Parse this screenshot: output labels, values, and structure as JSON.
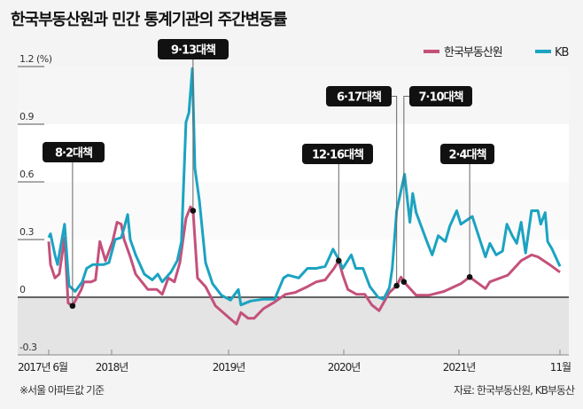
{
  "title": "한국부동산원과 민간 통계기관의 주간변동률",
  "footnote": "※서울 아파트값 기준",
  "source": "자료: 한국부동산원, KB부동산",
  "chart_data": {
    "type": "line",
    "title": "한국부동산원과 민간 통계기관의 주간변동률",
    "ylabel": "(%)",
    "ylim": [
      -0.3,
      1.2
    ],
    "yticks": [
      -0.3,
      0,
      0.3,
      0.6,
      0.9,
      1.2
    ],
    "ytick_labels": [
      "-0.3",
      "0",
      "0.3",
      "0.6",
      "0.9",
      "1.2 (%)"
    ],
    "xticks": [
      {
        "date": "2017-06-01",
        "label": "2017년 6월"
      },
      {
        "date": "2018-01-01",
        "label": "2018년"
      },
      {
        "date": "2019-01-01",
        "label": "2019년"
      },
      {
        "date": "2020-01-01",
        "label": "2020년"
      },
      {
        "date": "2021-01-01",
        "label": "2021년"
      },
      {
        "date": "2021-11-17",
        "label": "11월"
      }
    ],
    "grid": false,
    "legend_position": "top-right",
    "series": [
      {
        "name": "한국부동산원",
        "color": "#c4517b",
        "points": [
          [
            "2017-06-01",
            0.29
          ],
          [
            "2017-06-07",
            0.17
          ],
          [
            "2017-06-22",
            0.1
          ],
          [
            "2017-07-07",
            0.12
          ],
          [
            "2017-07-25",
            0.31
          ],
          [
            "2017-08-06",
            -0.03
          ],
          [
            "2017-08-21",
            -0.045
          ],
          [
            "2017-09-20",
            0.04
          ],
          [
            "2017-09-29",
            0.08
          ],
          [
            "2017-10-23",
            0.08
          ],
          [
            "2017-11-07",
            0.09
          ],
          [
            "2017-11-22",
            0.29
          ],
          [
            "2017-12-11",
            0.19
          ],
          [
            "2018-01-04",
            0.29
          ],
          [
            "2018-01-18",
            0.39
          ],
          [
            "2018-01-31",
            0.38
          ],
          [
            "2018-02-09",
            0.3
          ],
          [
            "2018-02-28",
            0.21
          ],
          [
            "2018-03-17",
            0.12
          ],
          [
            "2018-04-24",
            0.04
          ],
          [
            "2018-05-22",
            0.04
          ],
          [
            "2018-06-08",
            0.015
          ],
          [
            "2018-06-27",
            0.1
          ],
          [
            "2018-07-16",
            0.08
          ],
          [
            "2018-08-02",
            0.18
          ],
          [
            "2018-08-21",
            0.41
          ],
          [
            "2018-09-04",
            0.47
          ],
          [
            "2018-09-12",
            0.45
          ],
          [
            "2018-09-26",
            0.1
          ],
          [
            "2018-10-21",
            0.055
          ],
          [
            "2018-11-21",
            -0.045
          ],
          [
            "2018-12-29",
            -0.1
          ],
          [
            "2019-01-26",
            -0.14
          ],
          [
            "2019-02-09",
            -0.08
          ],
          [
            "2019-03-04",
            -0.11
          ],
          [
            "2019-03-23",
            -0.11
          ],
          [
            "2019-04-21",
            -0.06
          ],
          [
            "2019-05-27",
            -0.025
          ],
          [
            "2019-06-30",
            0.015
          ],
          [
            "2019-07-31",
            0.025
          ],
          [
            "2019-09-08",
            0.055
          ],
          [
            "2019-10-06",
            0.08
          ],
          [
            "2019-11-03",
            0.09
          ],
          [
            "2019-12-01",
            0.15
          ],
          [
            "2019-12-16",
            0.19
          ],
          [
            "2019-12-29",
            0.115
          ],
          [
            "2020-01-14",
            0.04
          ],
          [
            "2020-02-11",
            0.015
          ],
          [
            "2020-03-08",
            0.015
          ],
          [
            "2020-03-30",
            -0.04
          ],
          [
            "2020-04-22",
            -0.07
          ],
          [
            "2020-05-25",
            0.025
          ],
          [
            "2020-06-17",
            0.06
          ],
          [
            "2020-07-01",
            0.105
          ],
          [
            "2020-07-10",
            0.08
          ],
          [
            "2020-08-18",
            0.01
          ],
          [
            "2020-09-27",
            0.01
          ],
          [
            "2020-11-14",
            0.03
          ],
          [
            "2021-01-07",
            0.07
          ],
          [
            "2021-02-04",
            0.105
          ],
          [
            "2021-03-26",
            0.045
          ],
          [
            "2021-04-09",
            0.08
          ],
          [
            "2021-06-05",
            0.115
          ],
          [
            "2021-07-17",
            0.19
          ],
          [
            "2021-08-19",
            0.22
          ],
          [
            "2021-09-08",
            0.21
          ],
          [
            "2021-10-15",
            0.17
          ],
          [
            "2021-11-17",
            0.13
          ]
        ]
      },
      {
        "name": "KB",
        "color": "#1ba3c1",
        "points": [
          [
            "2017-06-01",
            0.31
          ],
          [
            "2017-06-07",
            0.33
          ],
          [
            "2017-06-22",
            0.22
          ],
          [
            "2017-07-01",
            0.17
          ],
          [
            "2017-07-10",
            0.25
          ],
          [
            "2017-07-25",
            0.38
          ],
          [
            "2017-08-09",
            0.06
          ],
          [
            "2017-08-30",
            0.03
          ],
          [
            "2017-09-23",
            0.08
          ],
          [
            "2017-10-08",
            0.15
          ],
          [
            "2017-10-29",
            0.17
          ],
          [
            "2017-12-05",
            0.17
          ],
          [
            "2017-12-23",
            0.18
          ],
          [
            "2018-01-12",
            0.3
          ],
          [
            "2018-01-31",
            0.31
          ],
          [
            "2018-02-09",
            0.36
          ],
          [
            "2018-02-20",
            0.43
          ],
          [
            "2018-02-28",
            0.3
          ],
          [
            "2018-03-17",
            0.22
          ],
          [
            "2018-04-13",
            0.12
          ],
          [
            "2018-05-08",
            0.09
          ],
          [
            "2018-05-25",
            0.12
          ],
          [
            "2018-06-08",
            0.08
          ],
          [
            "2018-07-05",
            0.13
          ],
          [
            "2018-07-25",
            0.19
          ],
          [
            "2018-08-07",
            0.29
          ],
          [
            "2018-08-21",
            0.91
          ],
          [
            "2018-08-30",
            0.96
          ],
          [
            "2018-09-10",
            1.19
          ],
          [
            "2018-09-18",
            0.67
          ],
          [
            "2018-10-02",
            0.5
          ],
          [
            "2018-10-21",
            0.18
          ],
          [
            "2018-11-12",
            0.07
          ],
          [
            "2018-12-10",
            0.01
          ],
          [
            "2019-01-07",
            -0.015
          ],
          [
            "2019-02-01",
            0.04
          ],
          [
            "2019-02-09",
            -0.04
          ],
          [
            "2019-03-12",
            -0.02
          ],
          [
            "2019-04-21",
            -0.01
          ],
          [
            "2019-05-27",
            -0.01
          ],
          [
            "2019-06-24",
            0.1
          ],
          [
            "2019-07-08",
            0.115
          ],
          [
            "2019-08-11",
            0.1
          ],
          [
            "2019-09-08",
            0.15
          ],
          [
            "2019-10-06",
            0.15
          ],
          [
            "2019-11-03",
            0.16
          ],
          [
            "2019-11-17",
            0.21
          ],
          [
            "2019-11-28",
            0.25
          ],
          [
            "2019-12-18",
            0.19
          ],
          [
            "2019-12-29",
            0.15
          ],
          [
            "2020-01-25",
            0.22
          ],
          [
            "2020-02-08",
            0.15
          ],
          [
            "2020-03-02",
            0.15
          ],
          [
            "2020-03-24",
            0.055
          ],
          [
            "2020-04-19",
            0.0
          ],
          [
            "2020-05-06",
            -0.01
          ],
          [
            "2020-05-25",
            0.05
          ],
          [
            "2020-06-03",
            0.15
          ],
          [
            "2020-06-17",
            0.45
          ],
          [
            "2020-07-12",
            0.64
          ],
          [
            "2020-07-29",
            0.39
          ],
          [
            "2020-08-07",
            0.54
          ],
          [
            "2020-08-18",
            0.44
          ],
          [
            "2020-09-21",
            0.29
          ],
          [
            "2020-10-08",
            0.22
          ],
          [
            "2020-10-27",
            0.32
          ],
          [
            "2020-11-19",
            0.29
          ],
          [
            "2020-12-03",
            0.37
          ],
          [
            "2020-12-25",
            0.45
          ],
          [
            "2021-01-07",
            0.38
          ],
          [
            "2021-02-12",
            0.42
          ],
          [
            "2021-03-26",
            0.21
          ],
          [
            "2021-04-09",
            0.28
          ],
          [
            "2021-04-29",
            0.22
          ],
          [
            "2021-05-19",
            0.24
          ],
          [
            "2021-06-02",
            0.38
          ],
          [
            "2021-06-19",
            0.32
          ],
          [
            "2021-07-03",
            0.28
          ],
          [
            "2021-07-17",
            0.39
          ],
          [
            "2021-07-31",
            0.23
          ],
          [
            "2021-08-19",
            0.45
          ],
          [
            "2021-09-08",
            0.45
          ],
          [
            "2021-09-17",
            0.38
          ],
          [
            "2021-10-01",
            0.44
          ],
          [
            "2021-10-09",
            0.29
          ],
          [
            "2021-10-23",
            0.25
          ],
          [
            "2021-11-17",
            0.16
          ]
        ]
      }
    ],
    "annotations": [
      {
        "label": "8·2대책",
        "date": "2017-08-21",
        "value": -0.045
      },
      {
        "label": "9·13대책",
        "date": "2018-09-12",
        "value": 0.45
      },
      {
        "label": "12·16대책",
        "date": "2019-12-16",
        "value": 0.19
      },
      {
        "label": "6·17대책",
        "date": "2020-06-17",
        "value": 0.06
      },
      {
        "label": "7·10대책",
        "date": "2020-07-10",
        "value": 0.08
      },
      {
        "label": "2·4대책",
        "date": "2021-02-04",
        "value": 0.105
      }
    ]
  }
}
